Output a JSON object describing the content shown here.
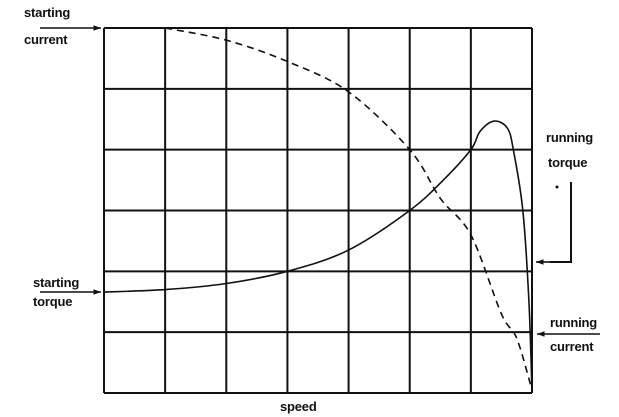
{
  "chart_data": {
    "type": "line",
    "title": "",
    "xlabel": "speed",
    "ylabel": "",
    "xlim": [
      0,
      7
    ],
    "ylim": [
      0,
      6
    ],
    "grid": true,
    "series": [
      {
        "name": "torque",
        "style": "solid",
        "x": [
          0,
          1,
          2,
          3,
          4,
          5,
          5.55,
          6,
          6.15,
          6.38,
          6.6,
          6.7,
          6.85,
          6.95,
          7
        ],
        "y": [
          1.66,
          1.7,
          1.8,
          2.0,
          2.35,
          3.0,
          3.5,
          4.0,
          4.3,
          4.47,
          4.35,
          3.97,
          3.0,
          1.5,
          0
        ]
      },
      {
        "name": "current",
        "style": "dashed",
        "x": [
          1,
          2,
          3,
          4,
          5,
          5.5,
          6,
          6.5,
          6.75,
          7
        ],
        "y": [
          6,
          5.8,
          5.45,
          4.95,
          4.0,
          3.2,
          2.6,
          1.3,
          0.9,
          0.05
        ]
      }
    ],
    "annotations": {
      "starting_current": [
        "starting",
        "current"
      ],
      "starting_torque": [
        "starting",
        "torque"
      ],
      "running_torque": [
        "running",
        "torque"
      ],
      "running_current": [
        "running",
        "current"
      ]
    },
    "color": "#111111"
  }
}
